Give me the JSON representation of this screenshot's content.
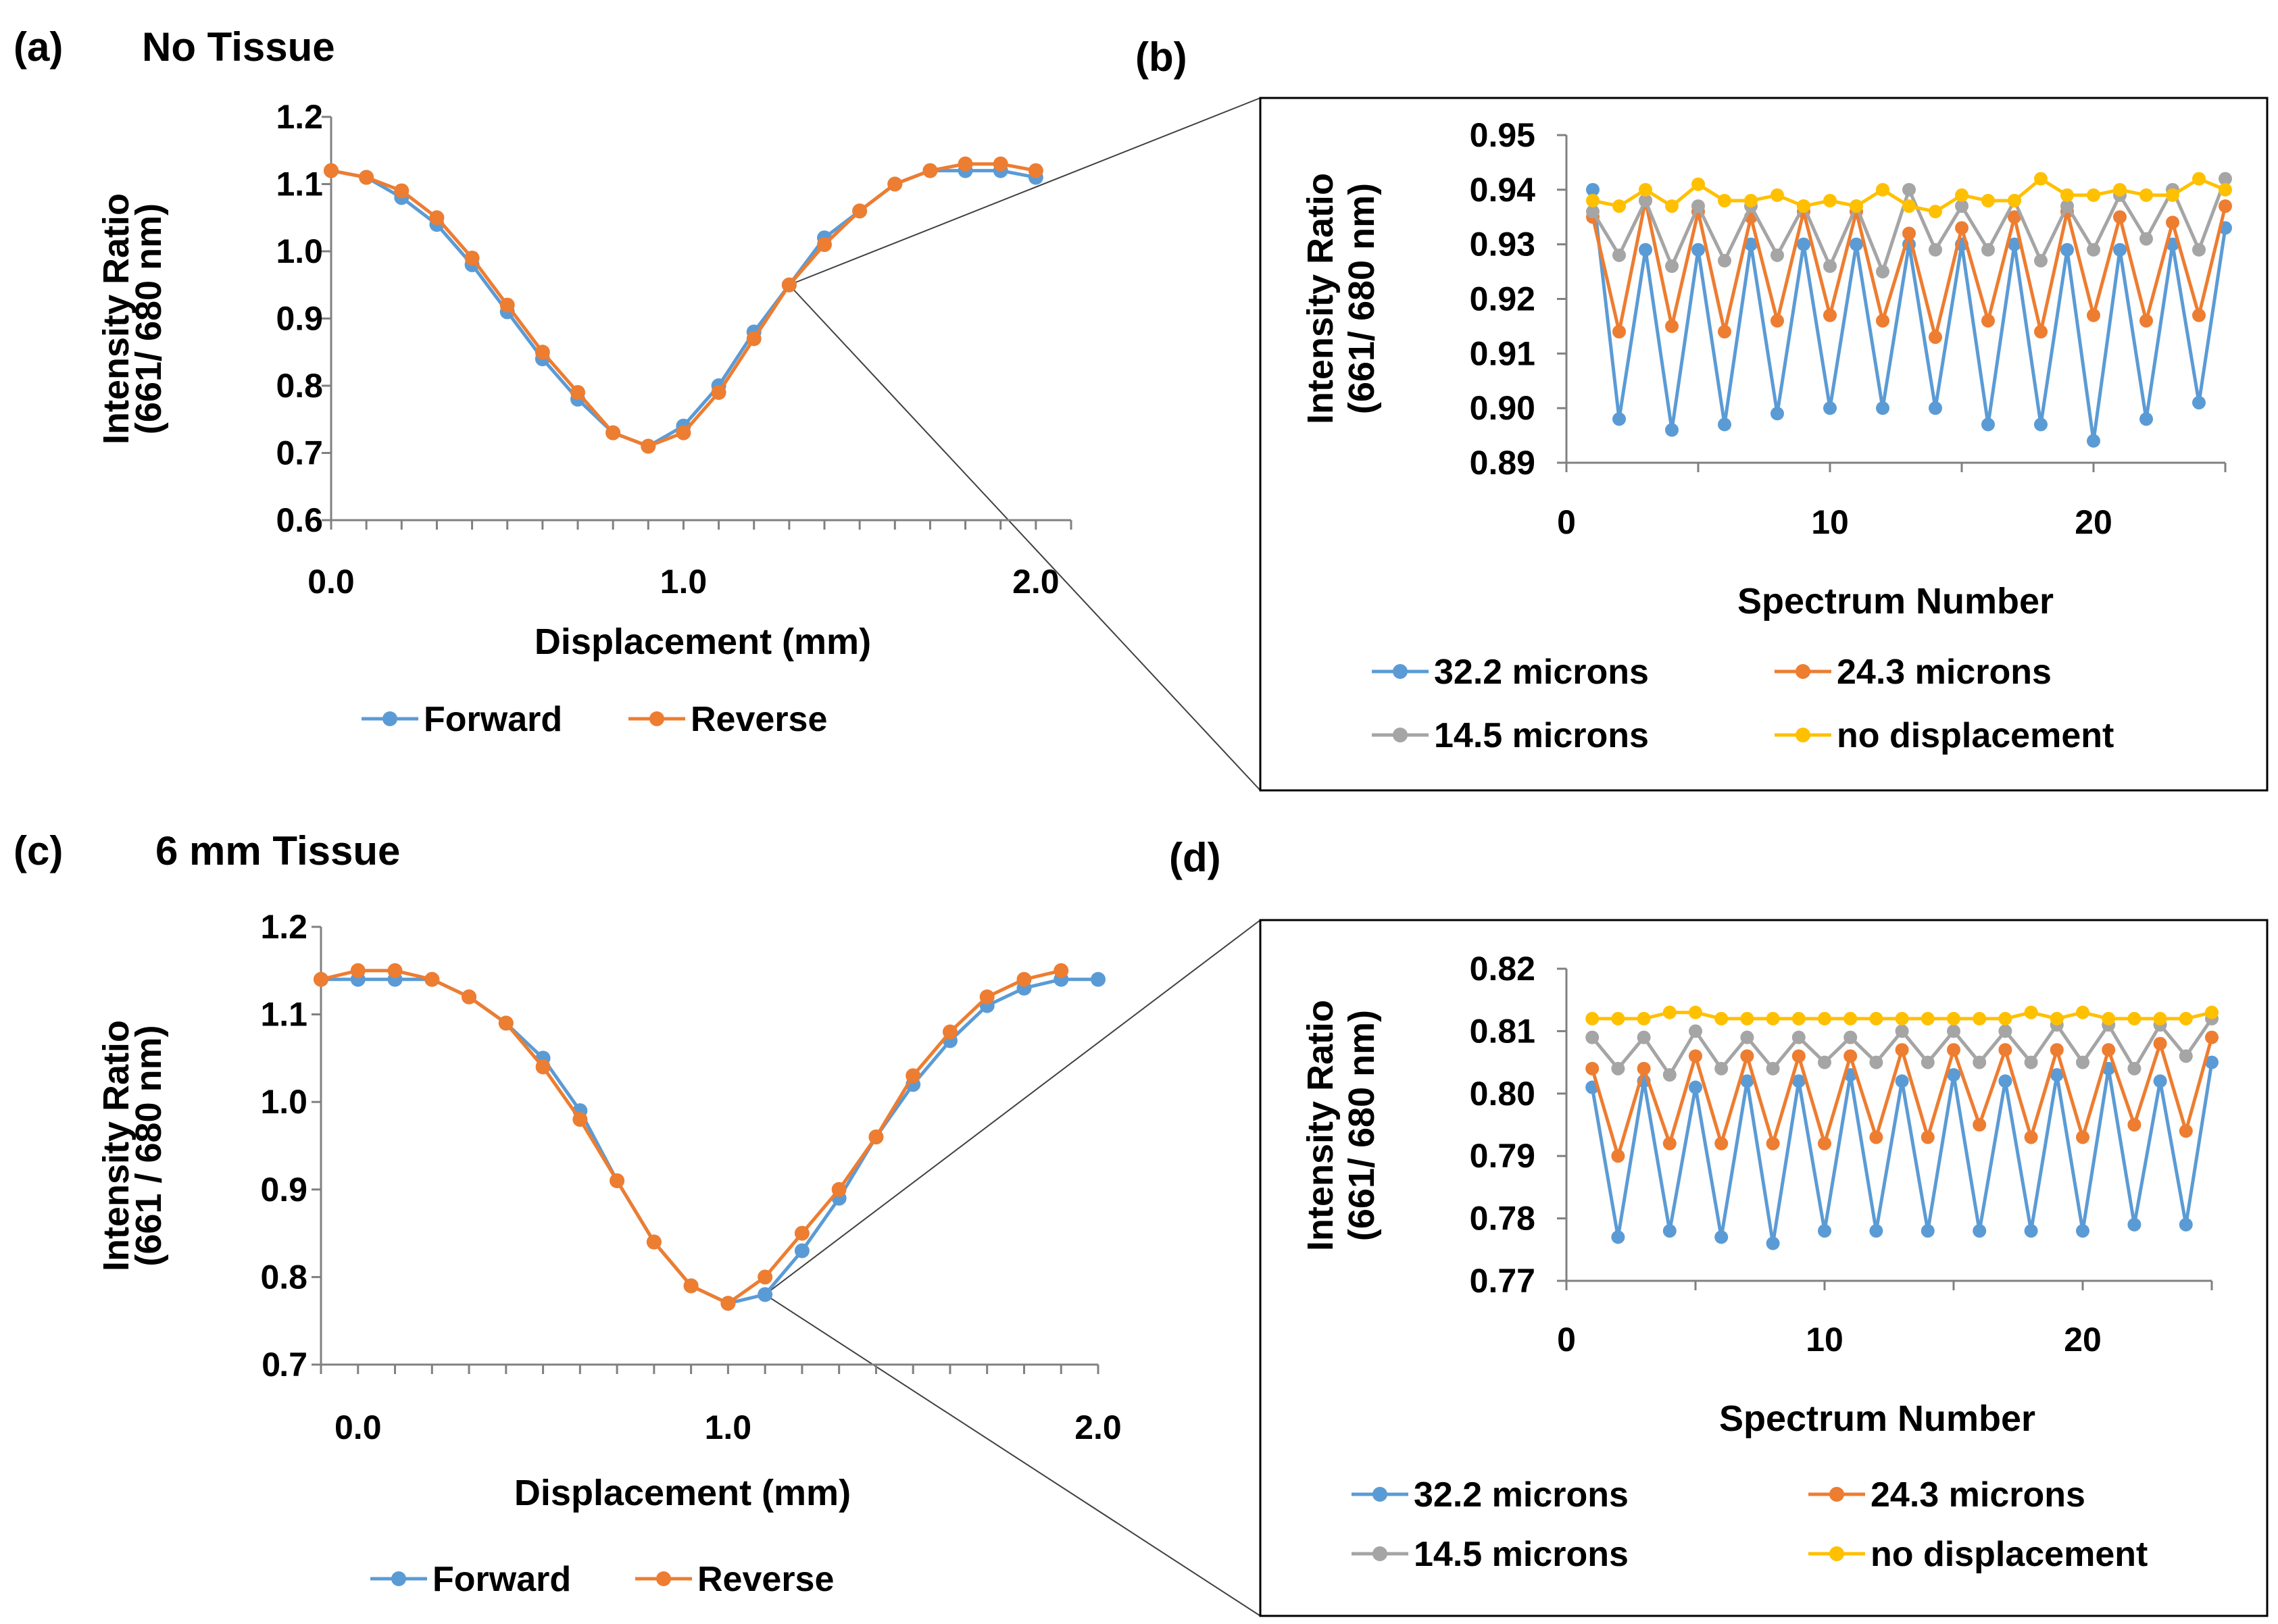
{
  "colors": {
    "forward": "#5B9BD5",
    "reverse": "#ED7D31",
    "s32": "#5B9BD5",
    "s24": "#ED7D31",
    "s14": "#A5A5A5",
    "s0": "#FFC000",
    "axis": "#808080"
  },
  "chart_data": [
    {
      "id": "a",
      "panel_label": "(a)",
      "title": "No Tissue",
      "type": "line",
      "xlabel": "Displacement  (mm)",
      "ylabel": [
        "Intensity Ratio",
        "(661/ 680 nm)"
      ],
      "xlim": [
        0,
        2.1
      ],
      "ylim": [
        0.6,
        1.2
      ],
      "x_ticks": [
        0,
        1,
        2
      ],
      "x_tick_labels": [
        "0.0",
        "1.0",
        "2.0"
      ],
      "x_minor_step": 0.1,
      "y_ticks": [
        0.6,
        0.7,
        0.8,
        0.9,
        1.0,
        1.1,
        1.2
      ],
      "y_tick_labels": [
        "0.6",
        "0.7",
        "0.8",
        "0.9",
        "1.0",
        "1.1",
        "1.2"
      ],
      "legend": [
        "Forward",
        "Reverse"
      ],
      "series": [
        {
          "name": "Forward",
          "color_key": "forward",
          "x": [
            0.0,
            0.1,
            0.2,
            0.3,
            0.4,
            0.5,
            0.6,
            0.7,
            0.8,
            0.9,
            1.0,
            1.1,
            1.2,
            1.3,
            1.4,
            1.5,
            1.6,
            1.7,
            1.8,
            1.9,
            2.0
          ],
          "values": [
            1.12,
            1.11,
            1.08,
            1.04,
            0.98,
            0.91,
            0.84,
            0.78,
            0.73,
            0.71,
            0.74,
            0.8,
            0.88,
            0.95,
            1.02,
            1.06,
            1.1,
            1.12,
            1.12,
            1.12,
            1.11
          ]
        },
        {
          "name": "Reverse",
          "color_key": "reverse",
          "x": [
            0.0,
            0.1,
            0.2,
            0.3,
            0.4,
            0.5,
            0.6,
            0.7,
            0.8,
            0.9,
            1.0,
            1.1,
            1.2,
            1.3,
            1.4,
            1.5,
            1.6,
            1.7,
            1.8,
            1.9,
            2.0
          ],
          "values": [
            1.12,
            1.11,
            1.09,
            1.05,
            0.99,
            0.92,
            0.85,
            0.79,
            0.73,
            0.71,
            0.73,
            0.79,
            0.87,
            0.95,
            1.01,
            1.06,
            1.1,
            1.12,
            1.13,
            1.13,
            1.12
          ]
        }
      ]
    },
    {
      "id": "b",
      "panel_label": "(b)",
      "title": "",
      "type": "line",
      "xlabel": "Spectrum Number",
      "ylabel": [
        "Intensity Ratio",
        "(661/ 680 nm)"
      ],
      "xlim": [
        0,
        25
      ],
      "ylim": [
        0.89,
        0.95
      ],
      "x_ticks": [
        0,
        10,
        20
      ],
      "x_tick_labels": [
        "0",
        "10",
        "20"
      ],
      "y_ticks": [
        0.89,
        0.9,
        0.91,
        0.92,
        0.93,
        0.94,
        0.95
      ],
      "y_tick_labels": [
        "0.89",
        "0.90",
        "0.91",
        "0.92",
        "0.93",
        "0.94",
        "0.95"
      ],
      "legend": [
        "32.2 microns",
        "24.3 microns",
        "14.5 microns",
        "no displacement"
      ],
      "series": [
        {
          "name": "32.2 microns",
          "color_key": "s32",
          "x": [
            1,
            2,
            3,
            4,
            5,
            6,
            7,
            8,
            9,
            10,
            11,
            12,
            13,
            14,
            15,
            16,
            17,
            18,
            19,
            20,
            21,
            22,
            23,
            24,
            25
          ],
          "values": [
            0.94,
            0.898,
            0.929,
            0.896,
            0.929,
            0.897,
            0.93,
            0.899,
            0.93,
            0.9,
            0.93,
            0.9,
            0.93,
            0.9,
            0.93,
            0.897,
            0.93,
            0.897,
            0.929,
            0.894,
            0.929,
            0.898,
            0.93,
            0.901,
            0.933
          ]
        },
        {
          "name": "24.3 microns",
          "color_key": "s24",
          "x": [
            1,
            2,
            3,
            4,
            5,
            6,
            7,
            8,
            9,
            10,
            11,
            12,
            13,
            14,
            15,
            16,
            17,
            18,
            19,
            20,
            21,
            22,
            23,
            24,
            25
          ],
          "values": [
            0.935,
            0.914,
            0.938,
            0.915,
            0.936,
            0.914,
            0.935,
            0.916,
            0.936,
            0.917,
            0.936,
            0.916,
            0.932,
            0.913,
            0.933,
            0.916,
            0.935,
            0.914,
            0.936,
            0.917,
            0.935,
            0.916,
            0.934,
            0.917,
            0.937
          ]
        },
        {
          "name": "14.5 microns",
          "color_key": "s14",
          "x": [
            1,
            2,
            3,
            4,
            5,
            6,
            7,
            8,
            9,
            10,
            11,
            12,
            13,
            14,
            15,
            16,
            17,
            18,
            19,
            20,
            21,
            22,
            23,
            24,
            25
          ],
          "values": [
            0.936,
            0.928,
            0.938,
            0.926,
            0.937,
            0.927,
            0.937,
            0.928,
            0.937,
            0.926,
            0.937,
            0.925,
            0.94,
            0.929,
            0.937,
            0.929,
            0.938,
            0.927,
            0.937,
            0.929,
            0.939,
            0.931,
            0.94,
            0.929,
            0.942
          ]
        },
        {
          "name": "no displacement",
          "color_key": "s0",
          "x": [
            1,
            2,
            3,
            4,
            5,
            6,
            7,
            8,
            9,
            10,
            11,
            12,
            13,
            14,
            15,
            16,
            17,
            18,
            19,
            20,
            21,
            22,
            23,
            24,
            25
          ],
          "values": [
            0.938,
            0.937,
            0.94,
            0.937,
            0.941,
            0.938,
            0.938,
            0.939,
            0.937,
            0.938,
            0.937,
            0.94,
            0.937,
            0.936,
            0.939,
            0.938,
            0.938,
            0.942,
            0.939,
            0.939,
            0.94,
            0.939,
            0.939,
            0.942,
            0.94
          ]
        }
      ]
    },
    {
      "id": "c",
      "panel_label": "(c)",
      "title": "6 mm Tissue",
      "type": "line",
      "xlabel": "Displacement  (mm)",
      "ylabel": [
        "Intensity Ratio",
        "(661 / 680 nm)"
      ],
      "xlim": [
        -0.1,
        2.0
      ],
      "ylim": [
        0.7,
        1.2
      ],
      "x_ticks": [
        0,
        1,
        2
      ],
      "x_tick_labels": [
        "0.0",
        "1.0",
        "2.0"
      ],
      "x_minor_step": 0.1,
      "y_ticks": [
        0.7,
        0.8,
        0.9,
        1.0,
        1.1,
        1.2
      ],
      "y_tick_labels": [
        ".7",
        "0.8",
        "0.9",
        "1.0",
        "1.1",
        "1.2"
      ],
      "y_partial_label": "0",
      "legend": [
        "Forward",
        "Reverse"
      ],
      "series": [
        {
          "name": "Forward",
          "color_key": "forward",
          "x": [
            -0.1,
            0.0,
            0.1,
            0.2,
            0.3,
            0.4,
            0.5,
            0.6,
            0.7,
            0.8,
            0.9,
            1.0,
            1.1,
            1.2,
            1.3,
            1.4,
            1.5,
            1.6,
            1.7,
            1.8,
            1.9,
            2.0
          ],
          "values": [
            1.14,
            1.14,
            1.14,
            1.14,
            1.12,
            1.09,
            1.05,
            0.99,
            0.91,
            0.84,
            0.79,
            0.77,
            0.78,
            0.83,
            0.89,
            0.96,
            1.02,
            1.07,
            1.11,
            1.13,
            1.14,
            1.14
          ]
        },
        {
          "name": "Reverse",
          "color_key": "reverse",
          "x": [
            -0.1,
            0.0,
            0.1,
            0.2,
            0.3,
            0.4,
            0.5,
            0.6,
            0.7,
            0.8,
            0.9,
            1.0,
            1.1,
            1.2,
            1.3,
            1.4,
            1.5,
            1.6,
            1.7,
            1.8,
            1.9
          ],
          "values": [
            1.14,
            1.15,
            1.15,
            1.14,
            1.12,
            1.09,
            1.04,
            0.98,
            0.91,
            0.84,
            0.79,
            0.77,
            0.8,
            0.85,
            0.9,
            0.96,
            1.03,
            1.08,
            1.12,
            1.14,
            1.15
          ]
        }
      ]
    },
    {
      "id": "d",
      "panel_label": "(d)",
      "title": "",
      "type": "line",
      "xlabel": "Spectrum Number",
      "ylabel": [
        "Intensity Ratio",
        "(661/ 680 nm)"
      ],
      "xlim": [
        0,
        25
      ],
      "ylim": [
        0.77,
        0.82
      ],
      "x_ticks": [
        0,
        10,
        20
      ],
      "x_tick_labels": [
        "0",
        "10",
        "20"
      ],
      "y_ticks": [
        0.77,
        0.78,
        0.79,
        0.8,
        0.81,
        0.82
      ],
      "y_tick_labels": [
        "0.77",
        "0.78",
        "0.79",
        "0.80",
        "0.81",
        "0.82"
      ],
      "legend": [
        "32.2 microns",
        "24.3 microns",
        "14.5 microns",
        "no displacement"
      ],
      "series": [
        {
          "name": "32.2 microns",
          "color_key": "s32",
          "x": [
            1,
            2,
            3,
            4,
            5,
            6,
            7,
            8,
            9,
            10,
            11,
            12,
            13,
            14,
            15,
            16,
            17,
            18,
            19,
            20,
            21,
            22,
            23,
            24,
            25
          ],
          "values": [
            0.801,
            0.777,
            0.802,
            0.778,
            0.801,
            0.777,
            0.802,
            0.776,
            0.802,
            0.778,
            0.803,
            0.778,
            0.802,
            0.778,
            0.803,
            0.778,
            0.802,
            0.778,
            0.803,
            0.778,
            0.804,
            0.779,
            0.802,
            0.779,
            0.805
          ]
        },
        {
          "name": "24.3 microns",
          "color_key": "s24",
          "x": [
            1,
            2,
            3,
            4,
            5,
            6,
            7,
            8,
            9,
            10,
            11,
            12,
            13,
            14,
            15,
            16,
            17,
            18,
            19,
            20,
            21,
            22,
            23,
            24,
            25
          ],
          "values": [
            0.804,
            0.79,
            0.804,
            0.792,
            0.806,
            0.792,
            0.806,
            0.792,
            0.806,
            0.792,
            0.806,
            0.793,
            0.807,
            0.793,
            0.807,
            0.795,
            0.807,
            0.793,
            0.807,
            0.793,
            0.807,
            0.795,
            0.808,
            0.794,
            0.809
          ]
        },
        {
          "name": "14.5 microns",
          "color_key": "s14",
          "x": [
            1,
            2,
            3,
            4,
            5,
            6,
            7,
            8,
            9,
            10,
            11,
            12,
            13,
            14,
            15,
            16,
            17,
            18,
            19,
            20,
            21,
            22,
            23,
            24,
            25
          ],
          "values": [
            0.809,
            0.804,
            0.809,
            0.803,
            0.81,
            0.804,
            0.809,
            0.804,
            0.809,
            0.805,
            0.809,
            0.805,
            0.81,
            0.805,
            0.81,
            0.805,
            0.81,
            0.805,
            0.811,
            0.805,
            0.811,
            0.804,
            0.811,
            0.806,
            0.812
          ]
        },
        {
          "name": "no displacement",
          "color_key": "s0",
          "x": [
            1,
            2,
            3,
            4,
            5,
            6,
            7,
            8,
            9,
            10,
            11,
            12,
            13,
            14,
            15,
            16,
            17,
            18,
            19,
            20,
            21,
            22,
            23,
            24,
            25
          ],
          "values": [
            0.812,
            0.812,
            0.812,
            0.813,
            0.813,
            0.812,
            0.812,
            0.812,
            0.812,
            0.812,
            0.812,
            0.812,
            0.812,
            0.812,
            0.812,
            0.812,
            0.812,
            0.813,
            0.812,
            0.813,
            0.812,
            0.812,
            0.812,
            0.812,
            0.813
          ]
        }
      ]
    }
  ]
}
